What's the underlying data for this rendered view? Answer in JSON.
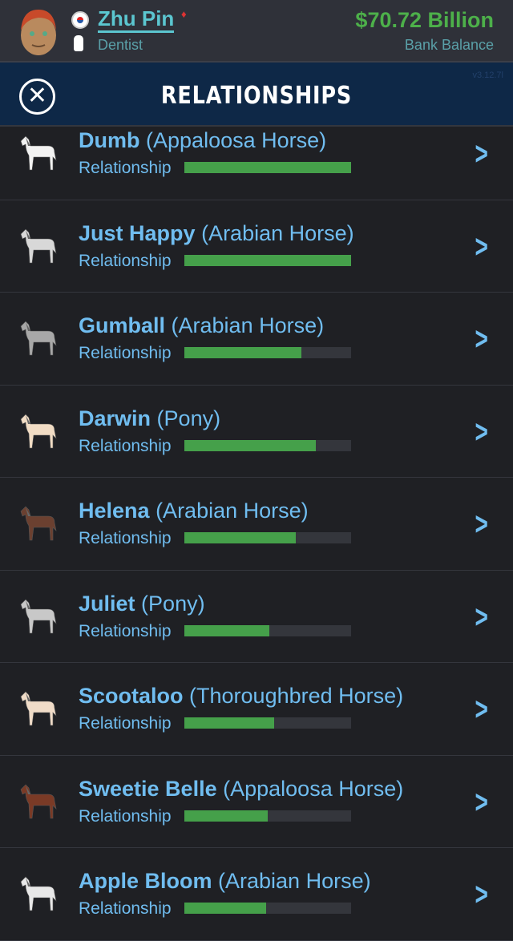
{
  "header": {
    "name": "Zhu Pin",
    "occupation": "Dentist",
    "balance": "$70.72 Billion",
    "balance_label": "Bank Balance"
  },
  "nav": {
    "title": "RELATIONSHIPS",
    "version": "v3.12.7l"
  },
  "relationship_label": "Relationship",
  "colors": {
    "accent": "#70bdf0",
    "bar": "#45a04a",
    "money": "#4db04a",
    "nav": "#0e2847"
  },
  "pets": [
    {
      "name": "Dumb",
      "type": "(Appaloosa Horse)",
      "relationship": 100,
      "coat": "#f2f2f2"
    },
    {
      "name": "Just Happy",
      "type": "(Arabian Horse)",
      "relationship": 100,
      "coat": "#d8d8d8"
    },
    {
      "name": "Gumball",
      "type": "(Arabian Horse)",
      "relationship": 70,
      "coat": "#a8a8a8"
    },
    {
      "name": "Darwin",
      "type": "(Pony)",
      "relationship": 79,
      "coat": "#f1dcc4"
    },
    {
      "name": "Helena",
      "type": "(Arabian Horse)",
      "relationship": 67,
      "coat": "#6b4030"
    },
    {
      "name": "Juliet",
      "type": "(Pony)",
      "relationship": 51,
      "coat": "#c8c8c8"
    },
    {
      "name": "Scootaloo",
      "type": "(Thoroughbred Horse)",
      "relationship": 54,
      "coat": "#f0dcc8"
    },
    {
      "name": "Sweetie Belle",
      "type": "(Appaloosa Horse)",
      "relationship": 50,
      "coat": "#7a3a26"
    },
    {
      "name": "Apple Bloom",
      "type": "(Arabian Horse)",
      "relationship": 49,
      "coat": "#e8e8e8"
    }
  ]
}
